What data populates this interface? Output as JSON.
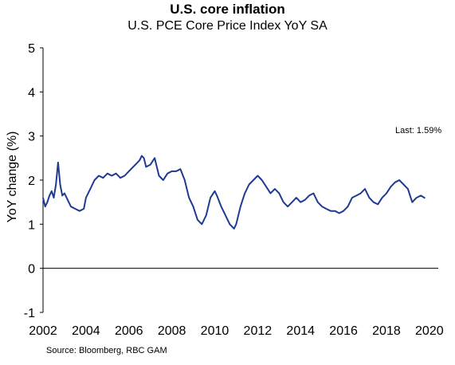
{
  "chart_data": {
    "type": "line",
    "title": "U.S. core inflation",
    "subtitle": "U.S. PCE Core Price Index YoY SA",
    "xlabel": "",
    "ylabel": "YoY change (%)",
    "xlim": [
      2002,
      2020.6
    ],
    "ylim": [
      -1,
      5
    ],
    "x_ticks": [
      2002,
      2004,
      2006,
      2008,
      2010,
      2012,
      2014,
      2016,
      2018,
      2020
    ],
    "y_ticks": [
      -1,
      0,
      1,
      2,
      3,
      4,
      5
    ],
    "grid": false,
    "legend": "none",
    "annotation": "Last: 1.59%",
    "source": "Source: Bloomberg, RBC GAM",
    "color": "#1f3a93",
    "series": [
      {
        "x": [
          2002.0,
          2002.1,
          2002.2,
          2002.3,
          2002.4,
          2002.5,
          2002.6,
          2002.7,
          2002.8,
          2002.9,
          2003.0,
          2003.1,
          2003.2,
          2003.3,
          2003.5,
          2003.7,
          2003.9,
          2004.0,
          2004.2,
          2004.4,
          2004.6,
          2004.8,
          2005.0,
          2005.2,
          2005.4,
          2005.6,
          2005.8,
          2006.0,
          2006.2,
          2006.4,
          2006.5,
          2006.6,
          2006.7,
          2006.8,
          2007.0,
          2007.2,
          2007.3,
          2007.4,
          2007.6,
          2007.8,
          2008.0,
          2008.2,
          2008.4,
          2008.6,
          2008.8,
          2009.0,
          2009.2,
          2009.4,
          2009.6,
          2009.8,
          2010.0,
          2010.1,
          2010.3,
          2010.5,
          2010.7,
          2010.9,
          2011.0,
          2011.2,
          2011.4,
          2011.6,
          2011.8,
          2012.0,
          2012.2,
          2012.4,
          2012.6,
          2012.8,
          2013.0,
          2013.2,
          2013.4,
          2013.6,
          2013.8,
          2014.0,
          2014.2,
          2014.4,
          2014.6,
          2014.8,
          2015.0,
          2015.2,
          2015.4,
          2015.6,
          2015.8,
          2016.0,
          2016.2,
          2016.4,
          2016.6,
          2016.8,
          2017.0,
          2017.2,
          2017.4,
          2017.6,
          2017.8,
          2018.0,
          2018.2,
          2018.4,
          2018.6,
          2018.8,
          2019.0,
          2019.2,
          2019.4,
          2019.6,
          2019.8
        ],
        "y": [
          1.6,
          1.4,
          1.5,
          1.65,
          1.75,
          1.6,
          1.9,
          2.4,
          1.9,
          1.65,
          1.7,
          1.6,
          1.5,
          1.4,
          1.35,
          1.3,
          1.35,
          1.6,
          1.8,
          2.0,
          2.1,
          2.05,
          2.15,
          2.1,
          2.15,
          2.05,
          2.1,
          2.2,
          2.3,
          2.4,
          2.45,
          2.55,
          2.5,
          2.3,
          2.35,
          2.5,
          2.3,
          2.1,
          2.0,
          2.15,
          2.2,
          2.2,
          2.25,
          2.0,
          1.6,
          1.4,
          1.1,
          1.0,
          1.2,
          1.6,
          1.75,
          1.65,
          1.4,
          1.2,
          1.0,
          0.9,
          1.0,
          1.4,
          1.7,
          1.9,
          2.0,
          2.1,
          2.0,
          1.85,
          1.7,
          1.8,
          1.7,
          1.5,
          1.4,
          1.5,
          1.6,
          1.5,
          1.55,
          1.65,
          1.7,
          1.5,
          1.4,
          1.35,
          1.3,
          1.3,
          1.25,
          1.3,
          1.4,
          1.6,
          1.65,
          1.7,
          1.8,
          1.6,
          1.5,
          1.45,
          1.6,
          1.7,
          1.85,
          1.95,
          2.0,
          1.9,
          1.8,
          1.5,
          1.6,
          1.65,
          1.59
        ]
      }
    ]
  }
}
